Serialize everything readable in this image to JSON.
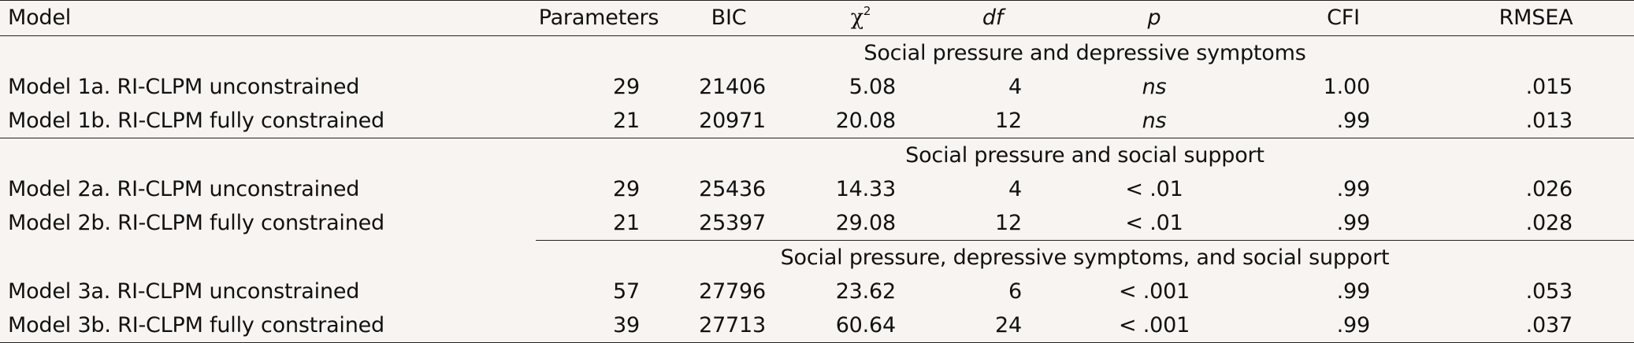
{
  "table": {
    "headers": {
      "model": "Model",
      "parameters": "Parameters",
      "bic": "BIC",
      "chi_symbol": "χ",
      "chi_sup": "2",
      "df": "df",
      "p": "p",
      "cfi": "CFI",
      "rmsea": "RMSEA"
    },
    "sections": [
      {
        "title": "Social pressure and depressive symptoms",
        "rows": [
          {
            "model": "Model 1a. RI-CLPM unconstrained",
            "parameters": "29",
            "bic": "21406",
            "chi2": "5.08",
            "df": "4",
            "p": "ns",
            "cfi": "1.00",
            "rmsea": ".015"
          },
          {
            "model": "Model 1b. RI-CLPM fully constrained",
            "parameters": "21",
            "bic": "20971",
            "chi2": "20.08",
            "df": "12",
            "p": "ns",
            "cfi": ".99",
            "rmsea": ".013"
          }
        ]
      },
      {
        "title": "Social pressure and social support",
        "rows": [
          {
            "model": "Model 2a. RI-CLPM unconstrained",
            "parameters": "29",
            "bic": "25436",
            "chi2": "14.33",
            "df": "4",
            "p": "< .01",
            "cfi": ".99",
            "rmsea": ".026"
          },
          {
            "model": "Model 2b. RI-CLPM fully constrained",
            "parameters": "21",
            "bic": "25397",
            "chi2": "29.08",
            "df": "12",
            "p": "< .01",
            "cfi": ".99",
            "rmsea": ".028"
          }
        ]
      },
      {
        "title": "Social pressure, depressive symptoms, and social support",
        "rows": [
          {
            "model": "Model 3a. RI-CLPM unconstrained",
            "parameters": "57",
            "bic": "27796",
            "chi2": "23.62",
            "df": "6",
            "p": "< .001",
            "cfi": ".99",
            "rmsea": ".053"
          },
          {
            "model": "Model 3b. RI-CLPM fully constrained",
            "parameters": "39",
            "bic": "27713",
            "chi2": "60.64",
            "df": "24",
            "p": "< .001",
            "cfi": ".99",
            "rmsea": ".037"
          }
        ]
      }
    ]
  }
}
